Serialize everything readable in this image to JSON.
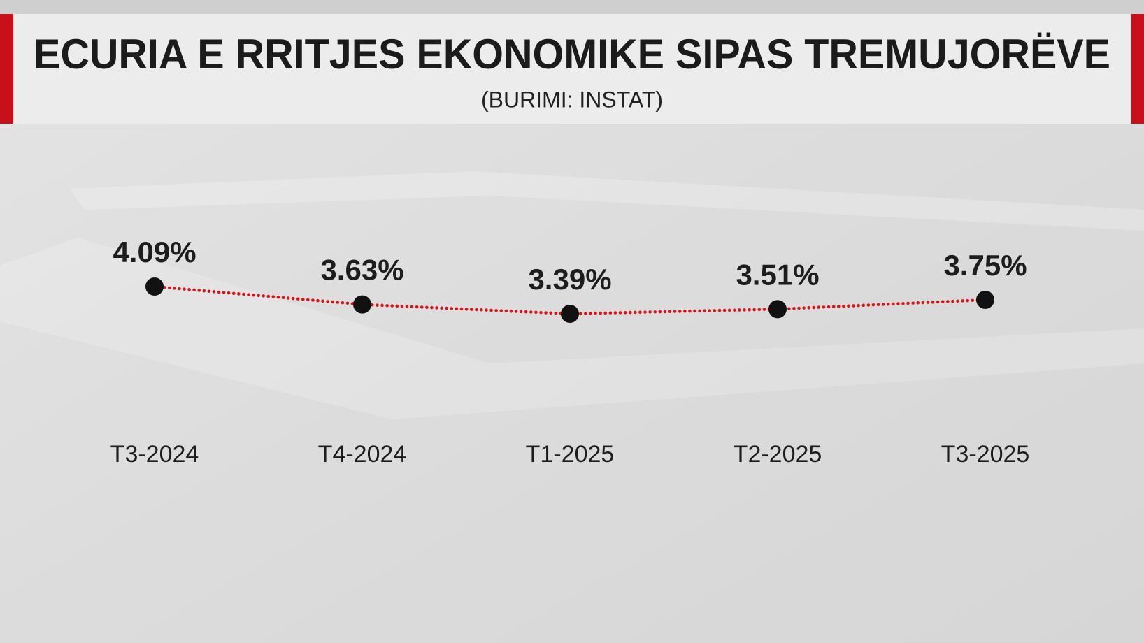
{
  "chart_data": {
    "type": "line",
    "title": "ECURIA E RRITJES EKONOMIKE SIPAS TREMUJORËVE",
    "subtitle": "(BURIMI: INSTAT)",
    "categories": [
      "T3-2024",
      "T4-2024",
      "T1-2025",
      "T2-2025",
      "T3-2025"
    ],
    "values": [
      4.09,
      3.63,
      3.39,
      3.51,
      3.75
    ],
    "value_labels": [
      "4.09%",
      "3.63%",
      "3.39%",
      "3.51%",
      "3.75%"
    ],
    "color": "#d8141b",
    "marker_color": "#111111"
  }
}
